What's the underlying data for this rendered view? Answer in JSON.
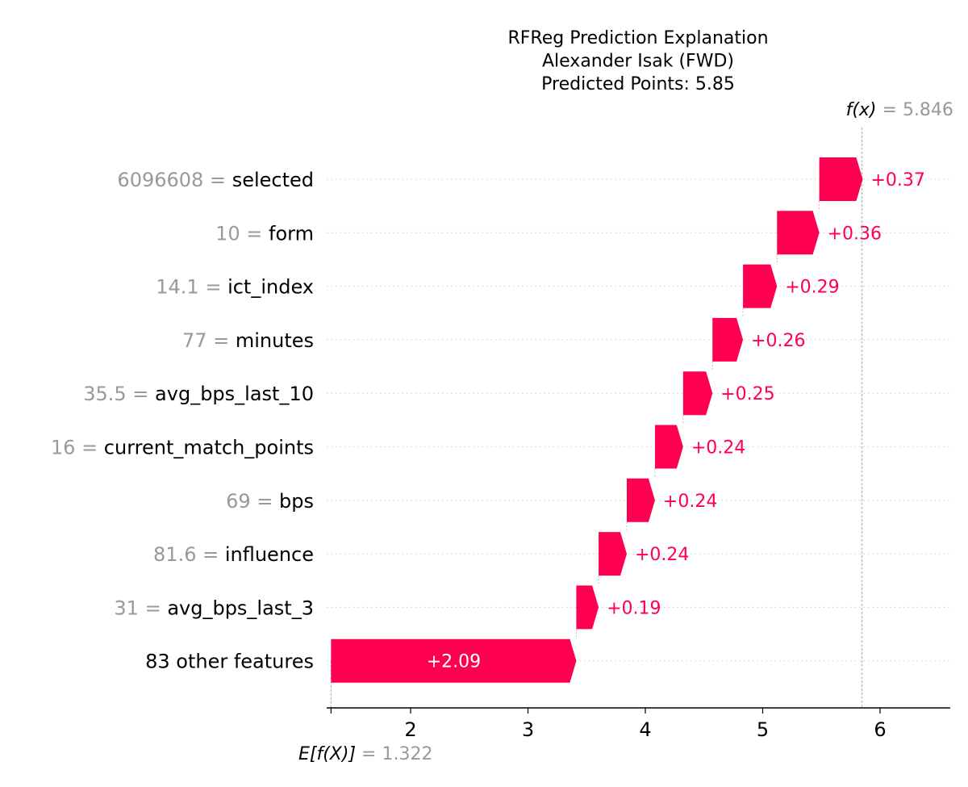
{
  "chart_data": {
    "type": "waterfall",
    "title_lines": [
      "RFReg Prediction Explanation",
      "Alexander Isak (FWD)",
      "Predicted Points: 5.85"
    ],
    "base_value": 1.322,
    "base_label": "E[f(X)]",
    "base_value_text": "= 1.322",
    "output_value": 5.846,
    "output_label": "f(x)",
    "output_value_text": "= 5.846",
    "xlim": [
      1.3,
      6.6
    ],
    "xticks": [
      2,
      3,
      4,
      5,
      6
    ],
    "positive_color": "#ff0051",
    "features": [
      {
        "value": "6096608",
        "name": "selected",
        "contribution": 0.37,
        "label": "+0.37"
      },
      {
        "value": "10",
        "name": "form",
        "contribution": 0.36,
        "label": "+0.36"
      },
      {
        "value": "14.1",
        "name": "ict_index",
        "contribution": 0.29,
        "label": "+0.29"
      },
      {
        "value": "77",
        "name": "minutes",
        "contribution": 0.26,
        "label": "+0.26"
      },
      {
        "value": "35.5",
        "name": "avg_bps_last_10",
        "contribution": 0.25,
        "label": "+0.25"
      },
      {
        "value": "16",
        "name": "current_match_points",
        "contribution": 0.24,
        "label": "+0.24"
      },
      {
        "value": "69",
        "name": "bps",
        "contribution": 0.24,
        "label": "+0.24"
      },
      {
        "value": "81.6",
        "name": "influence",
        "contribution": 0.24,
        "label": "+0.24"
      },
      {
        "value": "31",
        "name": "avg_bps_last_3",
        "contribution": 0.19,
        "label": "+0.19"
      },
      {
        "value": "",
        "name": "83 other features",
        "contribution": 2.09,
        "label": "+2.09"
      }
    ]
  }
}
